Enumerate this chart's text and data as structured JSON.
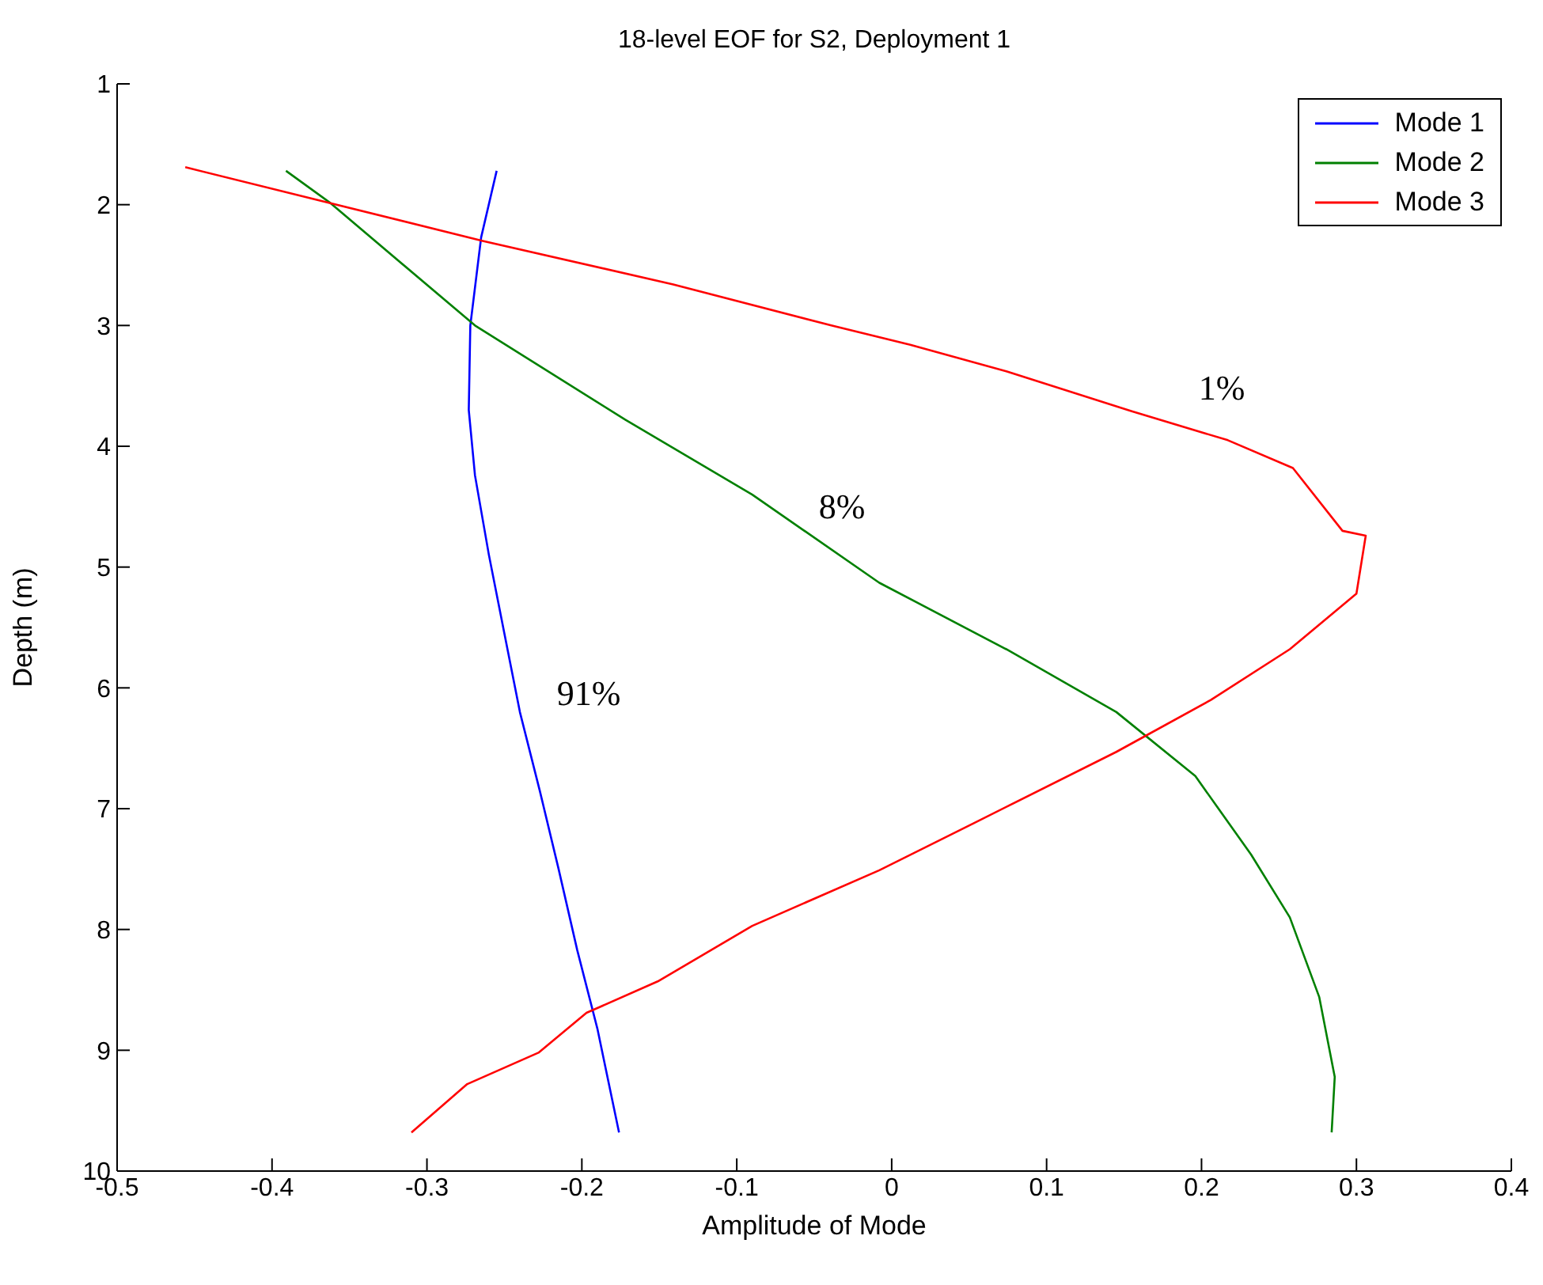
{
  "chart_data": {
    "type": "line",
    "title": "18-level EOF for S2, Deployment 1",
    "xlabel": "Amplitude of Mode",
    "ylabel": "Depth (m)",
    "xlim": [
      -0.5,
      0.4
    ],
    "xticks": [
      -0.5,
      -0.4,
      -0.3,
      -0.2,
      -0.1,
      0,
      0.1,
      0.2,
      0.3,
      0.4
    ],
    "ylim": [
      10,
      1
    ],
    "yticks": [
      1,
      2,
      3,
      4,
      5,
      6,
      7,
      8,
      9,
      10
    ],
    "legend": "top right",
    "line_style": "solid",
    "marker": "none",
    "series": [
      {
        "name": "Mode 1",
        "color": "#0000ff",
        "x": [
          -0.255,
          -0.265,
          -0.272,
          -0.273,
          -0.269,
          -0.26,
          -0.25,
          -0.24,
          -0.227,
          -0.215,
          -0.203,
          -0.19,
          -0.176
        ],
        "values": [
          1.72,
          2.27,
          3.0,
          3.7,
          4.24,
          4.9,
          5.55,
          6.2,
          6.86,
          7.5,
          8.17,
          8.82,
          9.68
        ]
      },
      {
        "name": "Mode 2",
        "color": "#008000",
        "x": [
          -0.391,
          -0.363,
          -0.269,
          -0.172,
          -0.09,
          -0.008,
          0.074,
          0.145,
          0.196,
          0.232,
          0.257,
          0.276,
          0.286,
          0.284
        ],
        "values": [
          1.72,
          1.98,
          3.0,
          3.78,
          4.4,
          5.13,
          5.68,
          6.2,
          6.73,
          7.38,
          7.9,
          8.56,
          9.22,
          9.68
        ]
      },
      {
        "name": "Mode 3",
        "color": "#ff0000",
        "x": [
          -0.456,
          -0.264,
          -0.141,
          -0.039,
          0.012,
          0.074,
          0.155,
          0.217,
          0.259,
          0.291,
          0.306,
          0.3,
          0.257,
          0.206,
          0.145,
          0.053,
          -0.008,
          -0.09,
          -0.151,
          -0.197,
          -0.228,
          -0.274,
          -0.31
        ],
        "values": [
          1.69,
          2.3,
          2.66,
          3.0,
          3.16,
          3.38,
          3.71,
          3.95,
          4.18,
          4.7,
          4.74,
          5.22,
          5.68,
          6.1,
          6.53,
          7.12,
          7.51,
          7.97,
          8.43,
          8.69,
          9.02,
          9.28,
          9.68
        ]
      }
    ],
    "annotations": [
      "1%",
      "8%",
      "91%"
    ]
  }
}
